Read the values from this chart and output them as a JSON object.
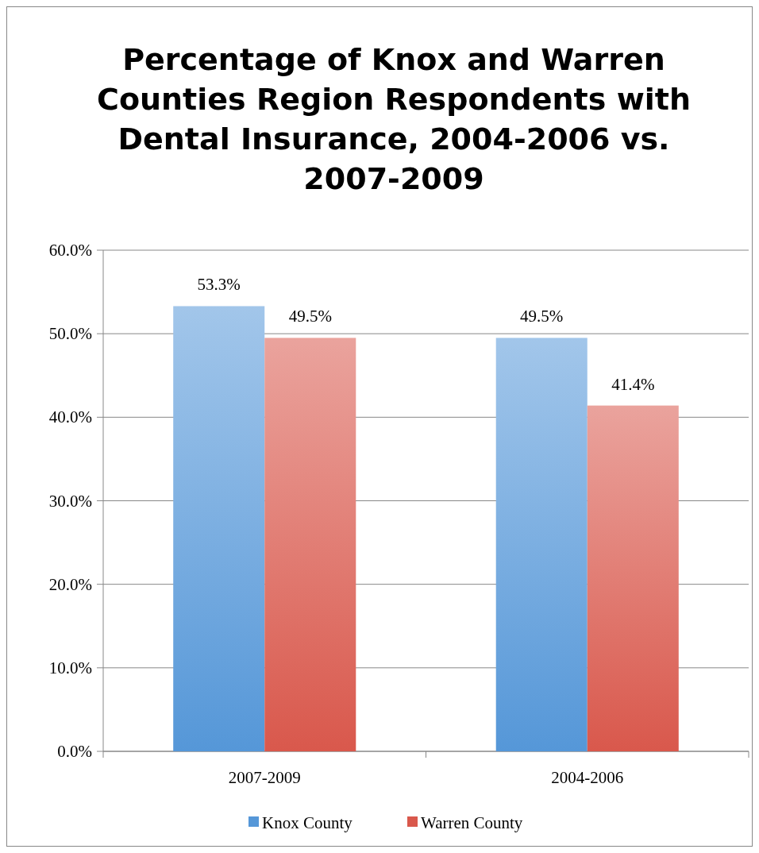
{
  "chart_data": {
    "type": "bar",
    "title": "Percentage of Knox and Warren Counties Region Respondents with Dental Insurance, 2004-2006 vs. 2007-2009",
    "categories": [
      "2007-2009",
      "2004-2006"
    ],
    "series": [
      {
        "name": "Knox County",
        "color": "#5597d8",
        "values": [
          53.3,
          49.5
        ],
        "value_labels": [
          "53.3%",
          "49.5%"
        ]
      },
      {
        "name": "Warren County",
        "color": "#d9584c",
        "values": [
          49.5,
          41.4
        ],
        "value_labels": [
          "49.5%",
          "41.4%"
        ]
      }
    ],
    "ylim": [
      0,
      60
    ],
    "yticks": [
      {
        "value": 0,
        "label": "0.0%"
      },
      {
        "value": 10,
        "label": "10.0%"
      },
      {
        "value": 20,
        "label": "20.0%"
      },
      {
        "value": 30,
        "label": "30.0%"
      },
      {
        "value": 40,
        "label": "40.0%"
      },
      {
        "value": 50,
        "label": "50.0%"
      },
      {
        "value": 60,
        "label": "60.0%"
      }
    ],
    "grid": "y",
    "legend": "bottom"
  }
}
